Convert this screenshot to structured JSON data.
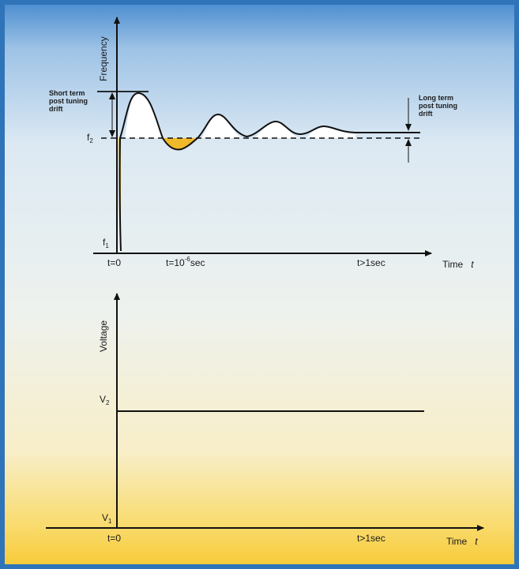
{
  "colors": {
    "frame": "#2f74b8",
    "sky_top": "#4f8fd0",
    "sky_mid": "#dfeaf2",
    "sand": "#f7cf45",
    "fill_yellow": "#f0b92c",
    "fill_white": "#ffffff",
    "ink": "#111111"
  },
  "top_chart": {
    "y_axis_label": "Frequency",
    "x_axis_label": "Time",
    "x_axis_symbol": "t",
    "f1": "f",
    "f1_sub": "1",
    "f2": "f",
    "f2_sub": "2",
    "t0_label": "t=0",
    "t_micro_prefix": "t=10",
    "t_micro_exp": "-6",
    "t_micro_suffix": "sec",
    "t_long_label": "t>1sec",
    "short_term_label": [
      "Short term",
      "post tuning",
      "drift"
    ],
    "long_term_label": [
      "Long term",
      "post tuning",
      "drift"
    ]
  },
  "bottom_chart": {
    "y_axis_label": "Voltage",
    "x_axis_label": "Time",
    "x_axis_symbol": "t",
    "v1": "V",
    "v1_sub": "1",
    "v2": "V",
    "v2_sub": "2",
    "t0_label": "t=0",
    "t_long_label": "t>1sec"
  },
  "icons": {
    "y_arrow": "arrow-up-icon",
    "x_arrow": "arrow-right-icon"
  }
}
